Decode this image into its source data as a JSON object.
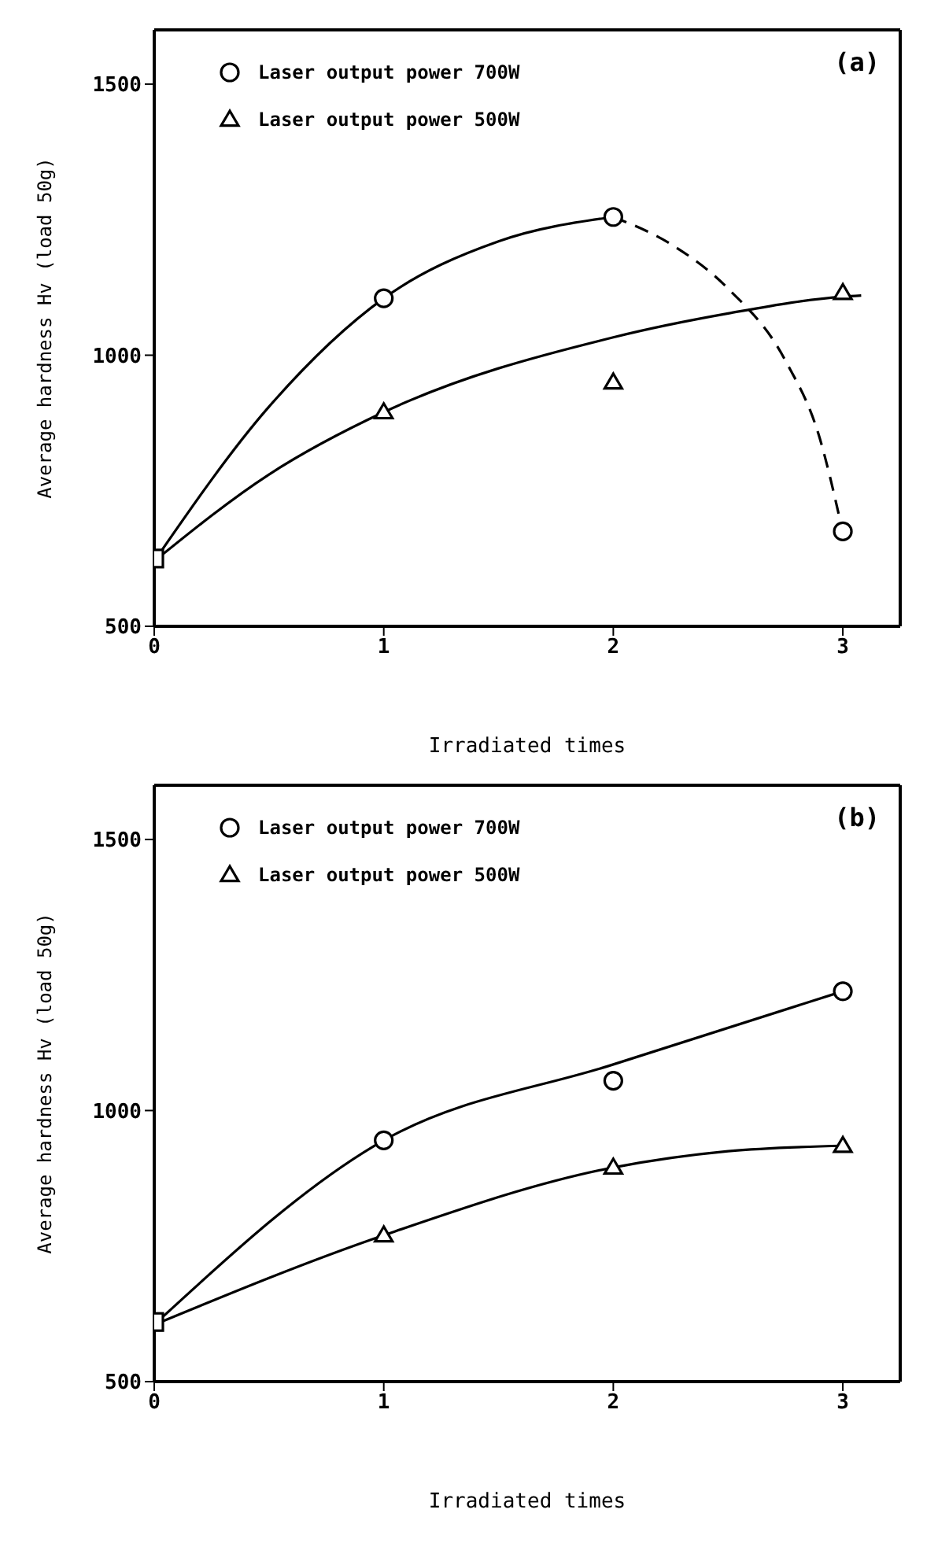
{
  "chart_data": [
    {
      "type": "scatter",
      "title": "(a)",
      "xlabel": "Irradiated times",
      "ylabel": "Average hardness Hv (load 50g)",
      "xlim": [
        0,
        3.25
      ],
      "xticks": [
        0,
        1,
        2,
        3
      ],
      "ylim": [
        500,
        1600
      ],
      "yticks": [
        500,
        1000,
        1500
      ],
      "legend": "top left",
      "series": [
        {
          "name": "Laser output power 700W",
          "marker": "circle",
          "color": "#000000",
          "x": [
            1,
            2,
            3
          ],
          "values": [
            1105,
            1255,
            675
          ]
        },
        {
          "name": "Laser output power 500W",
          "marker": "triangle",
          "color": "#000000",
          "x": [
            1,
            2,
            3
          ],
          "values": [
            895,
            950,
            1115
          ]
        },
        {
          "marker": "square",
          "color": "#000000",
          "x": [
            0
          ],
          "values": [
            625
          ]
        },
        {
          "type": "line",
          "marker": "none",
          "line_style": "solid",
          "color": "#000000",
          "x": [
            0,
            0.5,
            1,
            1.5,
            2
          ],
          "values": [
            620,
            905,
            1105,
            1210,
            1255
          ]
        },
        {
          "type": "line",
          "marker": "none",
          "line_style": "dashed",
          "color": "#000000",
          "x": [
            2,
            2.25,
            2.5,
            2.75,
            2.9,
            3
          ],
          "values": [
            1255,
            1205,
            1123,
            990,
            846,
            673
          ]
        },
        {
          "type": "line",
          "marker": "none",
          "line_style": "solid",
          "color": "#000000",
          "x": [
            0,
            0.5,
            1,
            2,
            2.5,
            3,
            3.08
          ],
          "values": [
            620,
            780,
            895,
            1033,
            1077,
            1108,
            1110
          ]
        }
      ]
    },
    {
      "type": "scatter",
      "title": "(b)",
      "xlabel": "Irradiated times",
      "ylabel": "Average hardness Hv (load 50g)",
      "xlim": [
        0,
        3.25
      ],
      "xticks": [
        0,
        1,
        2,
        3
      ],
      "ylim": [
        500,
        1600
      ],
      "yticks": [
        500,
        1000,
        1500
      ],
      "legend": "top left",
      "series": [
        {
          "name": "Laser output power 700W",
          "marker": "circle",
          "color": "#000000",
          "x": [
            1,
            2,
            3
          ],
          "values": [
            945,
            1055,
            1220
          ]
        },
        {
          "name": "Laser output power 500W",
          "marker": "triangle",
          "color": "#000000",
          "x": [
            1,
            2,
            3
          ],
          "values": [
            770,
            895,
            935
          ]
        },
        {
          "marker": "square",
          "color": "#000000",
          "x": [
            0
          ],
          "values": [
            610
          ]
        },
        {
          "type": "line",
          "marker": "none",
          "line_style": "solid",
          "color": "#000000",
          "x": [
            0,
            1,
            2,
            3
          ],
          "values": [
            605,
            945,
            1085,
            1220
          ]
        },
        {
          "type": "line",
          "marker": "none",
          "line_style": "solid",
          "color": "#000000",
          "x": [
            0,
            1,
            2,
            2.5,
            3
          ],
          "values": [
            605,
            770,
            895,
            925,
            935
          ]
        }
      ]
    }
  ]
}
